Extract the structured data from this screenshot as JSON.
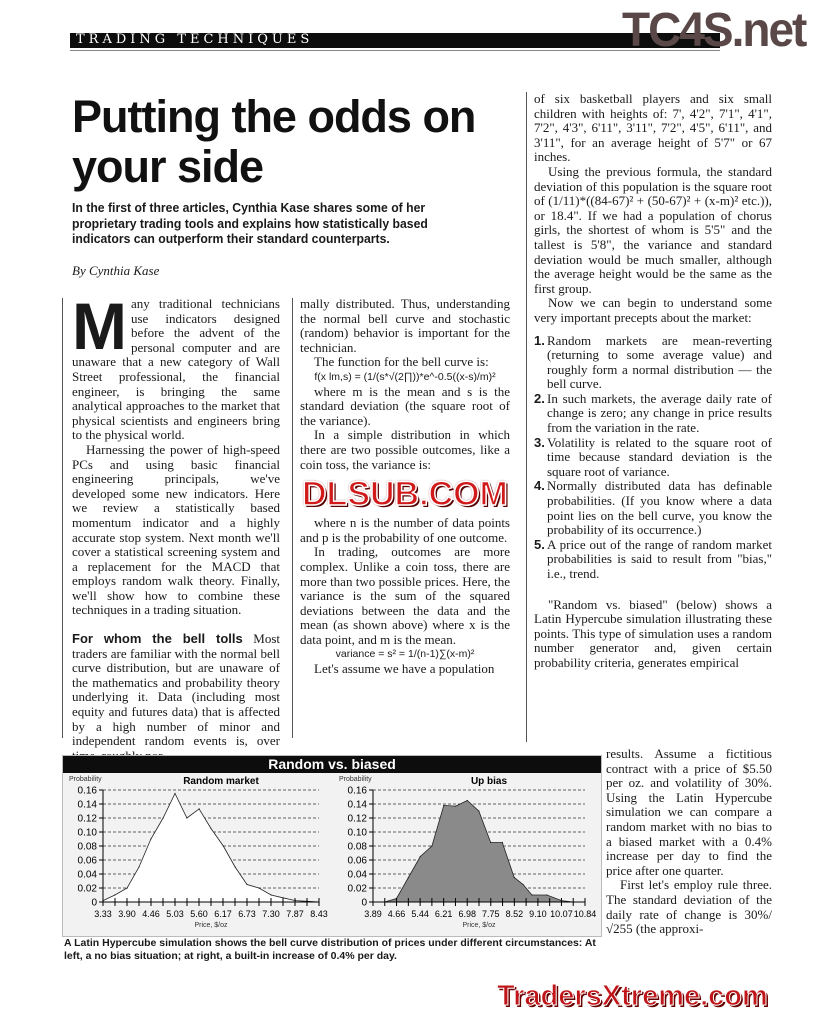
{
  "header": {
    "section": "TRADING TECHNIQUES",
    "logo": "TC4S.net"
  },
  "article": {
    "title": "Putting the odds on your side",
    "deck": "In the first of three articles, Cynthia Kase shares some of her proprietary trading tools and explains how statistically based indicators can outperform their standard counterparts.",
    "byline": "By Cynthia Kase",
    "col1": {
      "dropcap": "M",
      "p1": "any traditional technicians use indicators designed before the advent of the personal computer and are unaware that a new category of Wall Street professional, the financial engineer, is bringing the same analytical approaches to the market that physical scientists and engineers bring to the physical world.",
      "p2": "Harnessing the power of high-speed PCs and using basic financial engineering principals, we've developed some new indicators. Here we review a statistically based momentum indicator and a highly accurate stop system. Next month we'll cover a statistical screening system and a replacement for the MACD that employs random walk theory. Finally, we'll show how to combine these techniques in a trading situation.",
      "subhead": "For whom the bell tolls",
      "p3": " Most traders are familiar with the normal bell curve distribution, but are unaware of the mathematics and probability theory underlying it. Data (including most equity and futures data) that is affected by a high number of minor and independent random events is, over time, roughly nor-"
    },
    "col2": {
      "p1": "mally distributed. Thus, understanding the normal bell curve and stochastic (random) behavior is important for the technician.",
      "p2": "The function for the bell curve is:",
      "formula1": "f(x lm,s) = (1/(s*√(2∏))*e^-0.5((x-s)/m)²",
      "p3": "where m is the mean and s is the standard deviation (the square root of the variance).",
      "p4": "In a simple distribution in which there are two possible outcomes, like a coin toss, the variance is:",
      "p5": "where n is the number of data points and p is the probability of one outcome.",
      "p6": "In trading, outcomes are more complex. Unlike a coin toss, there are more than two possible prices. Here, the variance is the sum of the squared deviations between the data and the mean (as shown above) where x is the data point, and m is the mean.",
      "formula2": "variance = s² = 1/(n-1)∑(x-m)²",
      "p7": "Let's assume we have a population"
    },
    "col3": {
      "p1": "of six basketball players and six small children with heights of: 7', 4'2\", 7'1\", 4'1\", 7'2\", 4'3\", 6'11\", 3'11\", 7'2\", 4'5\", 6'11\", and 3'11\", for an average height of 5'7\" or 67 inches.",
      "p2": "Using the previous formula, the standard deviation of this population is the square root of (1/11)*((84-67)² + (50-67)² + (x-m)² etc.)), or 18.4\". If we had a population of chorus girls, the shortest of whom is 5'5\" and the tallest is 5'8\", the variance and standard deviation would be much smaller, although the average height would be the same as the first group.",
      "p3": "Now we can begin to understand some very important precepts about the market:",
      "list": [
        {
          "num": "1.",
          "text": "Random markets are mean-reverting (returning to some average value) and roughly form a normal distribution — the bell curve."
        },
        {
          "num": "2.",
          "text": "In such markets, the average daily rate of change is zero; any change in price results from the variation in the rate."
        },
        {
          "num": "3.",
          "text": "Volatility is related to the square root of time because standard deviation is the square root of variance."
        },
        {
          "num": "4.",
          "text": "Normally distributed data has definable probabilities. (If you know where a data point lies on the bell curve, you know the probability of its occurrence.)"
        },
        {
          "num": "5.",
          "text": "A price out of the range of random market probabilities is said to result from \"bias,\" i.e., trend."
        }
      ],
      "p4": "\"Random vs. biased\" (below) shows a Latin Hypercube simulation illustrating these points. This type of simulation uses a random number generator and, given certain probability criteria, generates empirical",
      "p5": "results. Assume a fictitious contract with a price of $5.50 per oz. and volatility of 30%. Using the Latin Hypercube simulation we can compare a random market with no bias to a biased market with a 0.4% increase per day to find the price after one quarter.",
      "p6": "First let's employ rule three. The standard deviation of the daily rate of change is 30%/√255 (the approxi-"
    }
  },
  "figure": {
    "title": "Random vs. biased",
    "caption": "A Latin Hypercube simulation shows the bell curve distribution of prices under different circumstances: At left, a no bias situation; at right, a built-in increase of 0.4% per day."
  },
  "chart_data": [
    {
      "type": "area",
      "title": "Random market",
      "ylabel": "Probability",
      "xlabel": "Price, $/oz",
      "ylim": [
        0,
        0.16
      ],
      "yticks": [
        "0",
        "0.02",
        "0.04",
        "0.06",
        "0.08",
        "0.10",
        "0.12",
        "0.14",
        "0.16"
      ],
      "xticks": [
        "3.33",
        "3.90",
        "4.46",
        "5.03",
        "5.60",
        "6.17",
        "6.73",
        "7.30",
        "7.87",
        "8.43"
      ],
      "grid": true,
      "fill": "#ffffff",
      "x": [
        3.33,
        3.61,
        3.9,
        4.18,
        4.46,
        4.75,
        5.03,
        5.31,
        5.6,
        5.88,
        6.17,
        6.45,
        6.73,
        7.01,
        7.3,
        7.58,
        7.87,
        8.15,
        8.43
      ],
      "y": [
        0.002,
        0.01,
        0.02,
        0.05,
        0.09,
        0.12,
        0.155,
        0.12,
        0.133,
        0.105,
        0.08,
        0.05,
        0.025,
        0.02,
        0.01,
        0.006,
        0.002,
        0.001,
        0
      ]
    },
    {
      "type": "area",
      "title": "Up bias",
      "ylabel": "Probability",
      "xlabel": "Price, $/oz",
      "ylim": [
        0,
        0.16
      ],
      "yticks": [
        "0",
        "0.02",
        "0.04",
        "0.06",
        "0.08",
        "0.10",
        "0.12",
        "0.14",
        "0.16"
      ],
      "xticks": [
        "3.89",
        "4.66",
        "5.44",
        "6.21",
        "6.98",
        "7.75",
        "8.52",
        "9.10",
        "10.07",
        "10.84"
      ],
      "grid": true,
      "fill": "#8a8a8a",
      "x": [
        3.89,
        4.27,
        4.66,
        5.05,
        5.44,
        5.82,
        6.21,
        6.6,
        6.98,
        7.36,
        7.75,
        8.13,
        8.52,
        8.81,
        9.1,
        9.59,
        10.07,
        10.45,
        10.84
      ],
      "y": [
        0,
        0,
        0.005,
        0.035,
        0.065,
        0.08,
        0.138,
        0.137,
        0.145,
        0.13,
        0.085,
        0.085,
        0.035,
        0.025,
        0.01,
        0.01,
        0.002,
        0,
        0
      ]
    }
  ],
  "watermarks": {
    "middle": "DLSUB.COM",
    "bottom": "TradersXtreme.com"
  }
}
